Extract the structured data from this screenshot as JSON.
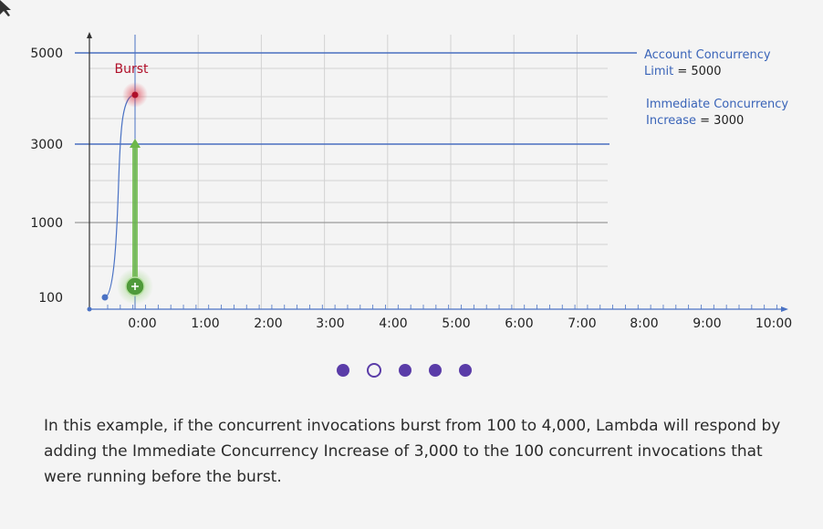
{
  "chart_data": {
    "type": "line",
    "y_tick_labels": [
      "5000",
      "3000",
      "1000",
      "100"
    ],
    "x_tick_labels": [
      "0:00",
      "1:00",
      "2:00",
      "3:00",
      "4:00",
      "5:00",
      "6:00",
      "7:00",
      "8:00",
      "9:00",
      "10:00"
    ],
    "series": [
      {
        "x": [
          "-0:30",
          "0:00"
        ],
        "y": [
          100,
          4000
        ]
      }
    ],
    "annotations": {
      "burst_label": "Burst",
      "account_limit_line1": "Account Concurrency",
      "account_limit_line2": "Limit = 5000",
      "immediate_line1": "Immediate Concurrency",
      "immediate_line2": "Increase = 3000"
    },
    "reference_lines": [
      {
        "value": 5000,
        "color": "#4a6fc0"
      },
      {
        "value": 3000,
        "color": "#4a6fc0"
      }
    ],
    "increase_arrow": {
      "from": 100,
      "to": 3100,
      "color": "#6db84a"
    },
    "grid": true
  },
  "carousel": {
    "count": 5,
    "current_index": 1,
    "color": "#5a3ca8"
  },
  "caption": "In this example, if the concurrent invocations burst from 100 to 4,000, Lambda will respond by adding the Immediate Concurrency Increase of 3,000 to the 100 concurrent invocations that were running before the burst.",
  "colors": {
    "axis": "#333333",
    "grid": "#d2d2d2",
    "curve": "#4a72c4",
    "burst": "#b0102a",
    "annotation": "#3a64b8"
  }
}
